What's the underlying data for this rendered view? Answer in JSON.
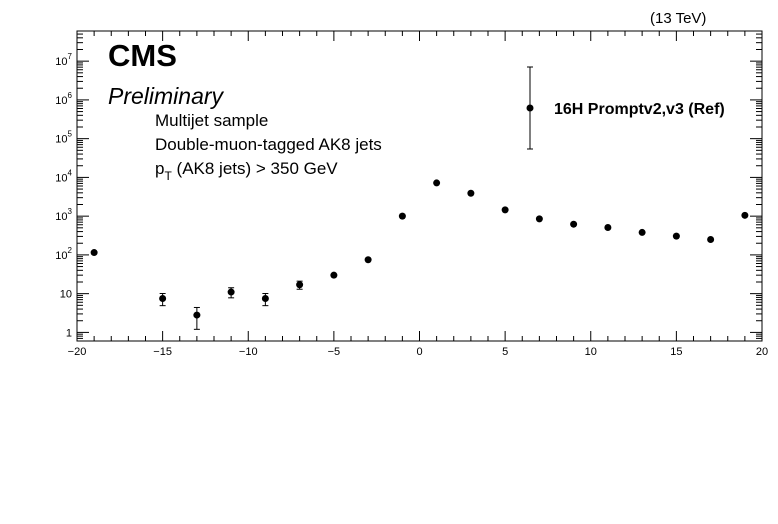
{
  "header": {
    "energy": "(13 TeV)",
    "experiment": "CMS",
    "status": "Preliminary"
  },
  "annotations": {
    "line1": "Multijet sample",
    "line2": "Double-muon-tagged AK8 jets",
    "line3_main": "p",
    "line3_sub": "T",
    "line3_rest": " (AK8 jets) > 350 GeV"
  },
  "chart_data": {
    "type": "scatter",
    "title": "",
    "xlabel": "",
    "ylabel": "",
    "xlim": [
      -20,
      20
    ],
    "ylim": [
      0.6,
      60000000
    ],
    "yscale": "log",
    "grid": false,
    "legend_position": "top-right",
    "x_ticks": [
      {
        "value": -20,
        "label": "−20"
      },
      {
        "value": -15,
        "label": "−15"
      },
      {
        "value": -10,
        "label": "−10"
      },
      {
        "value": -5,
        "label": "−5"
      },
      {
        "value": 0,
        "label": "0"
      },
      {
        "value": 5,
        "label": "5"
      },
      {
        "value": 10,
        "label": "10"
      },
      {
        "value": 15,
        "label": "15"
      },
      {
        "value": 20,
        "label": "20"
      }
    ],
    "y_ticks": [
      {
        "value": 1,
        "base": "1",
        "exp": ""
      },
      {
        "value": 10,
        "base": "10",
        "exp": ""
      },
      {
        "value": 100,
        "base": "10",
        "exp": "2"
      },
      {
        "value": 1000,
        "base": "10",
        "exp": "3"
      },
      {
        "value": 10000,
        "base": "10",
        "exp": "4"
      },
      {
        "value": 100000,
        "base": "10",
        "exp": "5"
      },
      {
        "value": 1000000,
        "base": "10",
        "exp": "6"
      },
      {
        "value": 10000000,
        "base": "10",
        "exp": "7"
      }
    ],
    "series": [
      {
        "name": "16H  Promptv2,v3 (Ref)",
        "color": "#000000",
        "points": [
          {
            "x": -19,
            "y": 115,
            "err": 10
          },
          {
            "x": -15,
            "y": 7.5,
            "err": 2.6
          },
          {
            "x": -13,
            "y": 2.8,
            "err": 1.6
          },
          {
            "x": -11,
            "y": 11,
            "err": 3.2
          },
          {
            "x": -9,
            "y": 7.5,
            "err": 2.6
          },
          {
            "x": -7,
            "y": 17,
            "err": 4
          },
          {
            "x": -5,
            "y": 30,
            "err": 5.5
          },
          {
            "x": -3,
            "y": 75,
            "err": 8.5
          },
          {
            "x": -1,
            "y": 1000,
            "err": 32
          },
          {
            "x": 1,
            "y": 7200,
            "err": 85
          },
          {
            "x": 3,
            "y": 3900,
            "err": 62
          },
          {
            "x": 5,
            "y": 1450,
            "err": 38
          },
          {
            "x": 7,
            "y": 850,
            "err": 29
          },
          {
            "x": 9,
            "y": 620,
            "err": 25
          },
          {
            "x": 11,
            "y": 510,
            "err": 22
          },
          {
            "x": 13,
            "y": 380,
            "err": 19
          },
          {
            "x": 15,
            "y": 305,
            "err": 17
          },
          {
            "x": 17,
            "y": 250,
            "err": 16
          },
          {
            "x": 19,
            "y": 1050,
            "err": 32
          }
        ]
      }
    ]
  }
}
